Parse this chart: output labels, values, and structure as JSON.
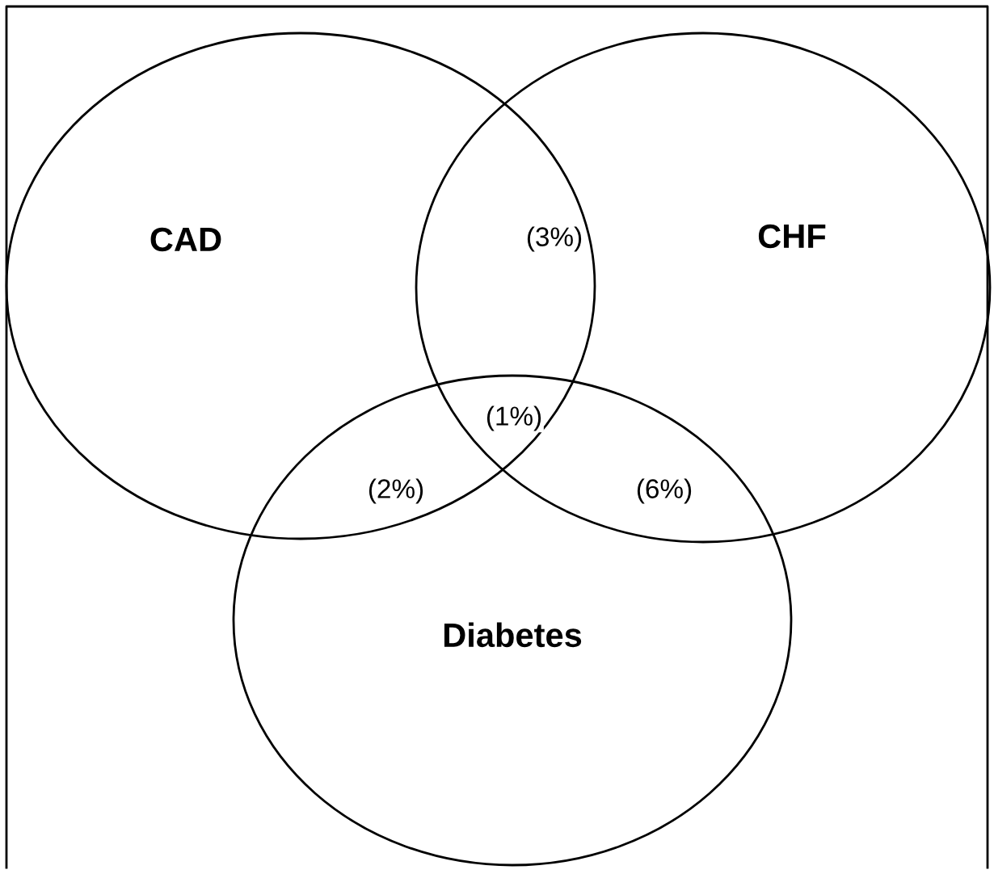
{
  "chart_data": {
    "type": "other",
    "categories": [
      null,
      null,
      null,
      null
    ],
    "values": [
      3,
      1,
      2,
      6
    ],
    "value_labels": [
      "(3%)",
      "(1%)",
      "(2%)",
      "(6%)"
    ],
    "annotations": [
      "CAD",
      "CHF",
      "Diabetes"
    ]
  }
}
